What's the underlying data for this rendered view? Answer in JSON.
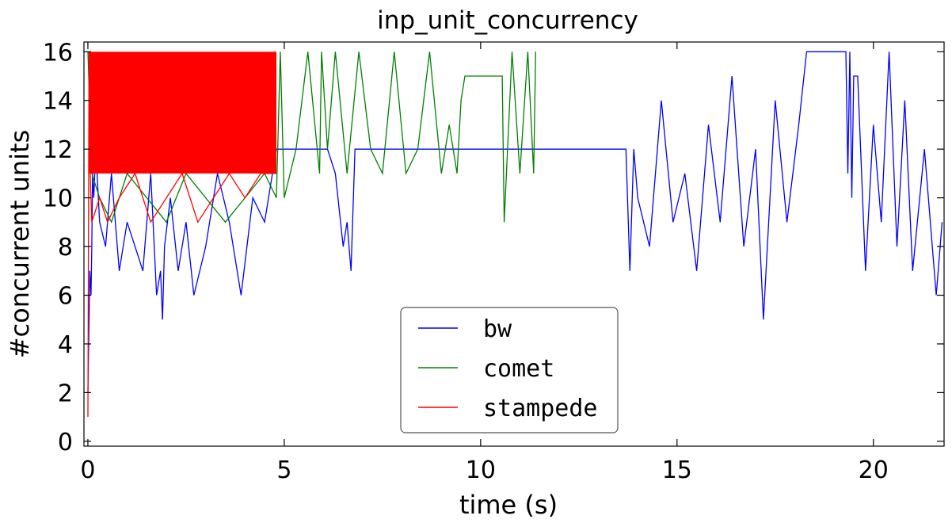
{
  "chart_data": {
    "type": "line",
    "title": "inp_unit_concurrency",
    "xlabel": "time (s)",
    "ylabel": "#concurrent units",
    "xlim": [
      -0.1,
      21.8
    ],
    "ylim": [
      -0.2,
      16.4
    ],
    "xticks": [
      0,
      5,
      10,
      15,
      20
    ],
    "yticks": [
      0,
      2,
      4,
      6,
      8,
      10,
      12,
      14,
      16
    ],
    "grid": false,
    "legend_position": "lower-center",
    "series": [
      {
        "name": "bw",
        "color": "#0000ff",
        "x": [
          0.0,
          0.05,
          0.08,
          0.1,
          0.12,
          0.15,
          0.2,
          0.3,
          0.45,
          0.6,
          0.8,
          1.0,
          1.2,
          1.4,
          1.6,
          1.75,
          1.85,
          1.9,
          1.95,
          2.1,
          2.3,
          2.5,
          2.7,
          3.0,
          3.3,
          3.6,
          3.9,
          4.2,
          4.5,
          4.7,
          4.8,
          5.0,
          5.5,
          5.9,
          6.1,
          6.3,
          6.5,
          6.6,
          6.7,
          6.8,
          7.0,
          8.0,
          9.0,
          10.0,
          11.0,
          12.0,
          13.0,
          13.7,
          13.8,
          13.9,
          14.0,
          14.3,
          14.6,
          14.9,
          15.2,
          15.5,
          15.8,
          16.1,
          16.4,
          16.7,
          17.0,
          17.2,
          17.5,
          17.8,
          18.1,
          18.3,
          18.4,
          18.6,
          18.8,
          19.0,
          19.3,
          19.35,
          19.4,
          19.45,
          19.5,
          19.6,
          19.8,
          20.0,
          20.2,
          20.4,
          20.6,
          20.8,
          21.0,
          21.3,
          21.6,
          21.75
        ],
        "values": [
          2,
          7,
          6,
          8,
          11,
          10,
          12,
          9,
          8,
          11,
          7,
          9,
          8,
          7,
          11,
          6,
          7,
          5,
          8,
          10,
          7,
          9,
          6,
          8,
          11,
          9,
          6,
          10,
          9,
          11,
          12,
          12,
          12,
          12,
          12,
          11,
          8,
          9,
          7,
          12,
          12,
          12,
          12,
          12,
          12,
          12,
          12,
          12,
          7,
          12,
          10,
          8,
          14,
          9,
          11,
          7,
          13,
          9,
          15,
          8,
          12,
          5,
          14,
          9,
          13,
          16,
          16,
          16,
          16,
          16,
          16,
          11,
          16,
          10,
          15,
          15,
          7,
          13,
          9,
          16,
          8,
          14,
          7,
          12,
          6,
          9
        ]
      },
      {
        "name": "comet",
        "color": "#008000",
        "x": [
          0.0,
          0.1,
          0.3,
          0.6,
          1.0,
          1.5,
          2.0,
          2.5,
          3.0,
          3.5,
          4.0,
          4.5,
          4.8,
          4.9,
          5.0,
          5.3,
          5.6,
          5.9,
          5.95,
          6.1,
          6.3,
          6.6,
          6.9,
          7.2,
          7.5,
          7.8,
          8.1,
          8.4,
          8.7,
          9.0,
          9.2,
          9.4,
          9.5,
          9.6,
          9.8,
          10.0,
          10.3,
          10.55,
          10.6,
          10.8,
          11.0,
          11.2,
          11.35,
          11.4
        ],
        "values": [
          16,
          11,
          10,
          9,
          11,
          10,
          9,
          11,
          10,
          9,
          10,
          11,
          10,
          16,
          10,
          12,
          16,
          11,
          16,
          12,
          16,
          11,
          16,
          12,
          11,
          16,
          11,
          12,
          16,
          11,
          13,
          11,
          14,
          15,
          15,
          15,
          15,
          15,
          9,
          16,
          11,
          16,
          11,
          16
        ]
      },
      {
        "name": "stampede",
        "color": "#ff0000",
        "x": [
          0.0,
          0.03,
          0.06,
          0.1,
          0.3,
          0.5,
          0.8,
          1.2,
          1.6,
          2.0,
          2.4,
          2.8,
          3.2,
          3.6,
          4.0,
          4.4,
          4.7,
          4.8
        ],
        "values": [
          1,
          16,
          11,
          9,
          10,
          9,
          10,
          11,
          9,
          10,
          11,
          9,
          10,
          11,
          10,
          11,
          11,
          11
        ],
        "band": [
          11,
          16
        ]
      }
    ]
  }
}
